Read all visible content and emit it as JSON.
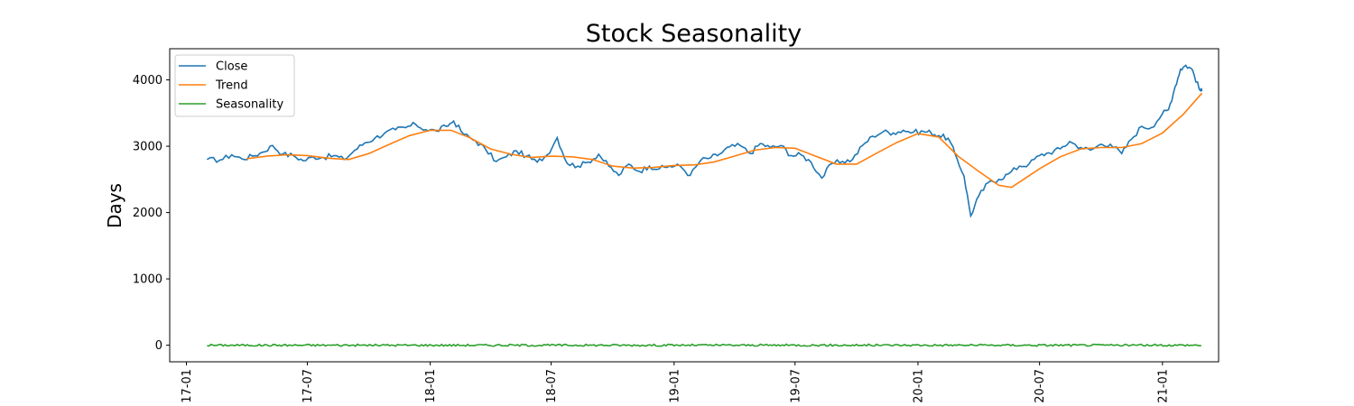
{
  "chart_data": {
    "type": "line",
    "title": "Stock Seasonality",
    "xlabel": "",
    "ylabel": "Days",
    "x_axis": {
      "type": "date",
      "range": [
        "2016-12-07",
        "2021-03-26"
      ],
      "ticks": [
        {
          "date": "2017-01-01",
          "label": "17-01"
        },
        {
          "date": "2017-07-01",
          "label": "17-07"
        },
        {
          "date": "2018-01-01",
          "label": "18-01"
        },
        {
          "date": "2018-07-01",
          "label": "18-07"
        },
        {
          "date": "2019-01-01",
          "label": "19-01"
        },
        {
          "date": "2019-07-01",
          "label": "19-07"
        },
        {
          "date": "2020-01-01",
          "label": "20-01"
        },
        {
          "date": "2020-07-01",
          "label": "20-07"
        },
        {
          "date": "2021-01-01",
          "label": "21-01"
        }
      ]
    },
    "y_axis": {
      "range": [
        -250,
        4470
      ],
      "ticks": [
        0,
        1000,
        2000,
        3000,
        4000
      ]
    },
    "grid": false,
    "legend_position": "top-left",
    "series": [
      {
        "name": "Close",
        "color": "#1f77b4",
        "points": [
          [
            "2017-02-01",
            2800
          ],
          [
            "2017-02-20",
            2790
          ],
          [
            "2017-03-10",
            2870
          ],
          [
            "2017-03-25",
            2810
          ],
          [
            "2017-04-10",
            2850
          ],
          [
            "2017-04-25",
            2910
          ],
          [
            "2017-05-10",
            3010
          ],
          [
            "2017-05-25",
            2880
          ],
          [
            "2017-06-10",
            2860
          ],
          [
            "2017-06-25",
            2780
          ],
          [
            "2017-07-10",
            2840
          ],
          [
            "2017-07-25",
            2830
          ],
          [
            "2017-08-10",
            2860
          ],
          [
            "2017-08-25",
            2800
          ],
          [
            "2017-09-10",
            2940
          ],
          [
            "2017-09-25",
            3050
          ],
          [
            "2017-10-10",
            3120
          ],
          [
            "2017-10-25",
            3200
          ],
          [
            "2017-11-10",
            3250
          ],
          [
            "2017-11-25",
            3280
          ],
          [
            "2017-12-10",
            3330
          ],
          [
            "2017-12-25",
            3250
          ],
          [
            "2018-01-10",
            3230
          ],
          [
            "2018-01-25",
            3300
          ],
          [
            "2018-02-05",
            3380
          ],
          [
            "2018-02-20",
            3180
          ],
          [
            "2018-03-10",
            3080
          ],
          [
            "2018-03-25",
            2950
          ],
          [
            "2018-04-10",
            2770
          ],
          [
            "2018-04-25",
            2840
          ],
          [
            "2018-05-10",
            2930
          ],
          [
            "2018-05-25",
            2850
          ],
          [
            "2018-06-10",
            2760
          ],
          [
            "2018-06-25",
            2870
          ],
          [
            "2018-07-10",
            3130
          ],
          [
            "2018-07-25",
            2740
          ],
          [
            "2018-08-10",
            2700
          ],
          [
            "2018-08-25",
            2760
          ],
          [
            "2018-09-10",
            2880
          ],
          [
            "2018-09-25",
            2700
          ],
          [
            "2018-10-10",
            2560
          ],
          [
            "2018-10-25",
            2730
          ],
          [
            "2018-11-10",
            2620
          ],
          [
            "2018-11-25",
            2700
          ],
          [
            "2018-12-10",
            2660
          ],
          [
            "2018-12-25",
            2700
          ],
          [
            "2019-01-10",
            2700
          ],
          [
            "2019-01-25",
            2560
          ],
          [
            "2019-02-10",
            2790
          ],
          [
            "2019-02-25",
            2830
          ],
          [
            "2019-03-10",
            2880
          ],
          [
            "2019-03-25",
            2990
          ],
          [
            "2019-04-10",
            3010
          ],
          [
            "2019-04-25",
            2890
          ],
          [
            "2019-05-10",
            3040
          ],
          [
            "2019-05-25",
            2980
          ],
          [
            "2019-06-10",
            3010
          ],
          [
            "2019-06-25",
            2860
          ],
          [
            "2019-07-10",
            2870
          ],
          [
            "2019-07-25",
            2760
          ],
          [
            "2019-08-10",
            2520
          ],
          [
            "2019-08-25",
            2740
          ],
          [
            "2019-09-10",
            2770
          ],
          [
            "2019-09-25",
            2800
          ],
          [
            "2019-10-10",
            3010
          ],
          [
            "2019-10-25",
            3150
          ],
          [
            "2019-11-10",
            3220
          ],
          [
            "2019-11-25",
            3200
          ],
          [
            "2019-12-10",
            3240
          ],
          [
            "2019-12-25",
            3210
          ],
          [
            "2020-01-10",
            3220
          ],
          [
            "2020-01-20",
            3210
          ],
          [
            "2020-02-01",
            3160
          ],
          [
            "2020-02-15",
            3120
          ],
          [
            "2020-02-25",
            2900
          ],
          [
            "2020-03-10",
            2550
          ],
          [
            "2020-03-20",
            1950
          ],
          [
            "2020-04-01",
            2250
          ],
          [
            "2020-04-15",
            2450
          ],
          [
            "2020-05-01",
            2500
          ],
          [
            "2020-05-15",
            2580
          ],
          [
            "2020-06-01",
            2700
          ],
          [
            "2020-06-15",
            2730
          ],
          [
            "2020-07-01",
            2860
          ],
          [
            "2020-07-15",
            2900
          ],
          [
            "2020-08-01",
            2960
          ],
          [
            "2020-08-15",
            3070
          ],
          [
            "2020-09-01",
            2980
          ],
          [
            "2020-09-15",
            2940
          ],
          [
            "2020-10-01",
            3030
          ],
          [
            "2020-10-15",
            3030
          ],
          [
            "2020-11-01",
            2890
          ],
          [
            "2020-11-15",
            3100
          ],
          [
            "2020-12-01",
            3300
          ],
          [
            "2020-12-15",
            3280
          ],
          [
            "2021-01-01",
            3490
          ],
          [
            "2021-01-10",
            3550
          ],
          [
            "2021-01-20",
            3900
          ],
          [
            "2021-01-28",
            4160
          ],
          [
            "2021-02-05",
            4220
          ],
          [
            "2021-02-15",
            4150
          ],
          [
            "2021-02-25",
            3860
          ],
          [
            "2021-03-01",
            3830
          ]
        ]
      },
      {
        "name": "Trend",
        "color": "#ff7f0e",
        "points": [
          [
            "2017-04-01",
            2810
          ],
          [
            "2017-05-01",
            2850
          ],
          [
            "2017-06-01",
            2870
          ],
          [
            "2017-07-01",
            2860
          ],
          [
            "2017-08-01",
            2820
          ],
          [
            "2017-09-01",
            2800
          ],
          [
            "2017-10-01",
            2890
          ],
          [
            "2017-11-01",
            3030
          ],
          [
            "2017-12-01",
            3160
          ],
          [
            "2018-01-01",
            3240
          ],
          [
            "2018-02-01",
            3240
          ],
          [
            "2018-03-01",
            3130
          ],
          [
            "2018-04-01",
            2960
          ],
          [
            "2018-05-01",
            2880
          ],
          [
            "2018-06-01",
            2830
          ],
          [
            "2018-07-01",
            2850
          ],
          [
            "2018-08-01",
            2840
          ],
          [
            "2018-09-01",
            2800
          ],
          [
            "2018-10-01",
            2700
          ],
          [
            "2018-11-01",
            2670
          ],
          [
            "2018-12-01",
            2680
          ],
          [
            "2019-01-01",
            2710
          ],
          [
            "2019-02-01",
            2720
          ],
          [
            "2019-03-01",
            2760
          ],
          [
            "2019-04-01",
            2850
          ],
          [
            "2019-05-01",
            2940
          ],
          [
            "2019-06-01",
            2980
          ],
          [
            "2019-07-01",
            2970
          ],
          [
            "2019-08-01",
            2850
          ],
          [
            "2019-09-01",
            2730
          ],
          [
            "2019-10-01",
            2730
          ],
          [
            "2019-11-01",
            2900
          ],
          [
            "2019-12-01",
            3060
          ],
          [
            "2020-01-01",
            3190
          ],
          [
            "2020-02-01",
            3140
          ],
          [
            "2020-03-01",
            2850
          ],
          [
            "2020-04-01",
            2620
          ],
          [
            "2020-05-01",
            2410
          ],
          [
            "2020-05-20",
            2380
          ],
          [
            "2020-06-01",
            2460
          ],
          [
            "2020-07-01",
            2660
          ],
          [
            "2020-08-01",
            2840
          ],
          [
            "2020-09-01",
            2960
          ],
          [
            "2020-10-01",
            2980
          ],
          [
            "2020-11-01",
            2980
          ],
          [
            "2020-12-01",
            3040
          ],
          [
            "2021-01-01",
            3200
          ],
          [
            "2021-02-01",
            3480
          ],
          [
            "2021-03-01",
            3800
          ]
        ]
      },
      {
        "name": "Seasonality",
        "color": "#2ca02c",
        "start": "2017-02-01",
        "end": "2021-03-01",
        "level": 0,
        "amplitude": 30
      }
    ]
  }
}
